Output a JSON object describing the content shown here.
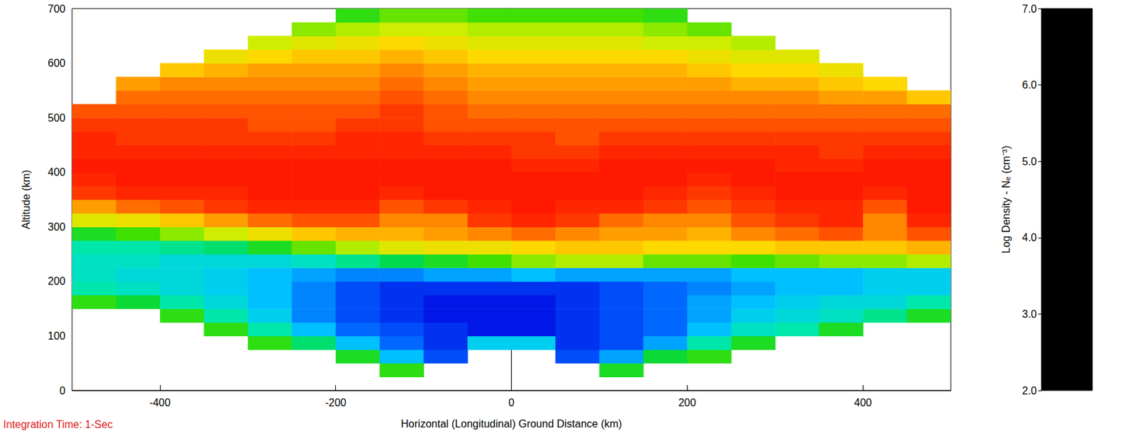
{
  "chart_data": {
    "type": "heatmap",
    "x_label": "Horizontal (Longitudinal) Ground Distance (km)",
    "y_label": "Altitude (km)",
    "annotation": "Integration Time: 1-Sec",
    "xlim": [
      -500,
      500
    ],
    "xticks": [
      -400,
      -200,
      0,
      200,
      400
    ],
    "ylim": [
      0,
      700
    ],
    "yticks": [
      0,
      100,
      200,
      300,
      400,
      500,
      600,
      700
    ],
    "cells": {
      "x": [
        -475,
        -425,
        -375,
        -325,
        -275,
        -225,
        -175,
        -125,
        -75,
        -25,
        25,
        75,
        125,
        175,
        225,
        275,
        325,
        375,
        425,
        475
      ],
      "y": [
        12.5,
        37.5,
        62.5,
        87.5,
        112.5,
        137.5,
        162.5,
        187.5,
        212.5,
        237.5,
        262.5,
        287.5,
        312.5,
        337.5,
        362.5,
        387.5,
        412.5,
        437.5,
        462.5,
        487.5,
        512.5,
        537.5,
        562.5,
        587.5,
        612.5,
        637.5,
        662.5,
        687.5
      ],
      "values": [
        [
          null,
          null,
          null,
          null,
          null,
          null,
          null,
          null,
          null,
          null,
          null,
          null,
          null,
          null,
          null,
          null,
          null,
          null,
          null,
          null
        ],
        [
          null,
          null,
          null,
          null,
          null,
          null,
          null,
          4.4,
          null,
          null,
          null,
          null,
          4.3,
          null,
          null,
          null,
          null,
          null,
          null,
          null
        ],
        [
          null,
          null,
          null,
          null,
          null,
          null,
          4.3,
          3.4,
          3.0,
          null,
          null,
          3.0,
          3.3,
          4.2,
          4.4,
          null,
          null,
          null,
          null,
          null
        ],
        [
          null,
          null,
          null,
          null,
          4.4,
          4.0,
          3.4,
          3.1,
          2.9,
          3.5,
          3.5,
          2.9,
          3.0,
          3.3,
          3.8,
          4.3,
          null,
          null,
          null,
          null
        ],
        [
          null,
          null,
          null,
          4.4,
          3.8,
          3.4,
          3.1,
          3.0,
          2.9,
          2.8,
          2.8,
          2.9,
          3.0,
          3.1,
          3.4,
          3.7,
          3.8,
          4.3,
          null,
          null
        ],
        [
          null,
          null,
          4.4,
          3.8,
          3.5,
          3.2,
          3.0,
          2.9,
          2.8,
          2.8,
          2.8,
          2.9,
          3.0,
          3.1,
          3.3,
          3.5,
          3.6,
          3.7,
          3.9,
          4.3
        ],
        [
          4.4,
          4.2,
          3.8,
          3.6,
          3.4,
          3.2,
          3.0,
          2.9,
          2.8,
          2.8,
          2.8,
          2.9,
          3.0,
          3.1,
          3.3,
          3.4,
          3.5,
          3.6,
          3.6,
          3.8
        ],
        [
          3.8,
          3.7,
          3.6,
          3.5,
          3.4,
          3.2,
          3.0,
          2.9,
          2.9,
          2.9,
          2.9,
          2.9,
          3.0,
          3.1,
          3.2,
          3.3,
          3.4,
          3.4,
          3.5,
          3.5
        ],
        [
          3.7,
          3.6,
          3.6,
          3.5,
          3.4,
          3.3,
          3.2,
          3.2,
          3.3,
          3.3,
          3.4,
          3.3,
          3.3,
          3.3,
          3.3,
          3.4,
          3.4,
          3.4,
          3.5,
          3.5
        ],
        [
          3.7,
          3.7,
          3.6,
          3.6,
          3.6,
          3.7,
          3.9,
          4.1,
          4.3,
          4.5,
          4.7,
          4.8,
          4.8,
          4.6,
          4.6,
          4.5,
          4.6,
          4.7,
          4.7,
          4.8
        ],
        [
          3.8,
          3.8,
          3.9,
          4.0,
          4.3,
          4.6,
          4.8,
          5.0,
          5.1,
          5.1,
          5.2,
          5.3,
          5.3,
          5.2,
          5.2,
          5.2,
          5.3,
          5.3,
          5.3,
          5.4
        ],
        [
          4.3,
          4.5,
          4.7,
          4.9,
          5.1,
          5.3,
          5.4,
          5.4,
          5.5,
          5.6,
          5.7,
          5.6,
          5.5,
          5.5,
          5.4,
          5.6,
          5.7,
          5.8,
          5.6,
          5.8
        ],
        [
          5.0,
          5.1,
          5.3,
          5.5,
          5.7,
          5.8,
          5.8,
          5.6,
          5.6,
          5.9,
          6.0,
          5.9,
          5.7,
          5.6,
          5.6,
          5.8,
          5.9,
          6.0,
          5.6,
          6.0
        ],
        [
          5.5,
          5.7,
          5.8,
          5.9,
          6.0,
          6.0,
          6.0,
          5.8,
          5.9,
          6.0,
          6.1,
          6.0,
          6.0,
          5.9,
          5.8,
          5.9,
          6.0,
          6.0,
          5.8,
          6.1
        ],
        [
          5.9,
          6.0,
          6.0,
          6.0,
          6.1,
          6.1,
          6.1,
          6.0,
          6.1,
          6.1,
          6.1,
          6.1,
          6.1,
          6.0,
          5.9,
          6.0,
          6.1,
          6.1,
          6.0,
          6.1
        ],
        [
          6.0,
          6.1,
          6.1,
          6.1,
          6.1,
          6.1,
          6.1,
          6.1,
          6.1,
          6.1,
          6.1,
          6.1,
          6.1,
          6.1,
          6.0,
          6.1,
          6.1,
          6.1,
          6.1,
          6.1
        ],
        [
          6.1,
          6.1,
          6.1,
          6.1,
          6.1,
          6.1,
          6.1,
          6.1,
          6.1,
          6.1,
          6.0,
          6.0,
          6.1,
          6.1,
          6.1,
          6.1,
          6.0,
          6.0,
          6.1,
          6.1
        ],
        [
          6.0,
          6.0,
          6.0,
          6.0,
          6.0,
          6.0,
          6.0,
          6.0,
          6.0,
          6.0,
          5.9,
          5.9,
          6.0,
          6.0,
          6.0,
          6.0,
          6.0,
          5.9,
          6.0,
          6.0
        ],
        [
          6.0,
          5.9,
          5.9,
          5.9,
          5.9,
          5.9,
          6.0,
          6.0,
          5.9,
          5.9,
          5.9,
          5.8,
          5.9,
          5.9,
          5.9,
          5.9,
          5.9,
          5.9,
          5.9,
          5.9
        ],
        [
          5.9,
          5.9,
          5.9,
          5.9,
          5.8,
          5.8,
          5.9,
          5.9,
          5.8,
          5.8,
          5.8,
          5.8,
          5.8,
          5.8,
          5.8,
          5.8,
          5.8,
          5.8,
          5.8,
          5.8
        ],
        [
          5.8,
          5.8,
          5.8,
          5.8,
          5.8,
          5.8,
          5.8,
          5.9,
          5.8,
          5.7,
          5.7,
          5.7,
          5.7,
          5.7,
          5.7,
          5.7,
          5.7,
          5.7,
          5.7,
          5.7
        ],
        [
          null,
          5.7,
          5.7,
          5.7,
          5.7,
          5.7,
          5.7,
          5.8,
          5.7,
          5.6,
          5.6,
          5.6,
          5.6,
          5.6,
          5.6,
          5.6,
          5.6,
          5.5,
          5.5,
          5.3
        ],
        [
          null,
          5.5,
          5.6,
          5.6,
          5.6,
          5.6,
          5.6,
          5.7,
          5.6,
          5.5,
          5.5,
          5.5,
          5.5,
          5.5,
          5.5,
          5.4,
          5.4,
          5.3,
          5.2,
          null
        ],
        [
          null,
          null,
          5.3,
          5.4,
          5.5,
          5.5,
          5.5,
          5.6,
          5.5,
          5.4,
          5.4,
          5.4,
          5.4,
          5.4,
          5.3,
          5.2,
          5.2,
          5.1,
          null,
          null
        ],
        [
          null,
          null,
          null,
          5.1,
          5.2,
          5.3,
          5.3,
          5.4,
          5.3,
          5.2,
          5.2,
          5.2,
          5.2,
          5.2,
          5.1,
          5.0,
          5.0,
          null,
          null,
          null
        ],
        [
          null,
          null,
          null,
          null,
          4.9,
          5.0,
          5.1,
          5.2,
          5.1,
          5.0,
          5.0,
          5.0,
          5.0,
          4.9,
          4.9,
          4.8,
          null,
          null,
          null,
          null
        ],
        [
          null,
          null,
          null,
          null,
          null,
          4.7,
          4.8,
          4.9,
          4.9,
          4.8,
          4.8,
          4.8,
          4.8,
          4.7,
          4.6,
          null,
          null,
          null,
          null,
          null
        ],
        [
          null,
          null,
          null,
          null,
          null,
          null,
          4.4,
          4.6,
          4.6,
          4.5,
          4.5,
          4.5,
          4.5,
          4.4,
          null,
          null,
          null,
          null,
          null,
          null
        ]
      ]
    },
    "colorbar": {
      "label": "Log Density - Nₑ (cm⁻³)",
      "range": [
        2,
        7
      ],
      "ticks": [
        {
          "value": 2,
          "label": "2.0"
        },
        {
          "value": 3,
          "label": "3.0"
        },
        {
          "value": 4,
          "label": "4.0"
        },
        {
          "value": 5,
          "label": "5.0"
        },
        {
          "value": 6,
          "label": "6.0"
        },
        {
          "value": 7,
          "label": "7.0"
        }
      ]
    }
  }
}
